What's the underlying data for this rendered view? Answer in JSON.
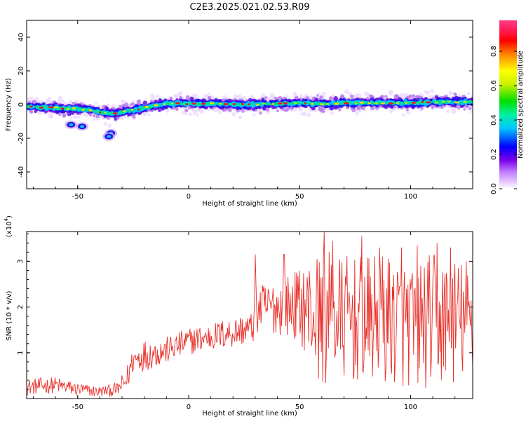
{
  "title": "C2E3.2025.021.02.53.R09",
  "chart_data": [
    {
      "type": "heatmap",
      "xlabel": "Height of straight line (km)",
      "ylabel": "Frequency (Hz)",
      "xlim": [
        -73,
        128
      ],
      "ylim": [
        -50,
        50
      ],
      "xticks": [
        -50,
        0,
        50,
        100
      ],
      "yticks": [
        -40,
        -20,
        0,
        20,
        40
      ],
      "colorbar": {
        "label": "Normalized spectral amplitude",
        "range": [
          0.0,
          0.98
        ],
        "ticks": [
          0.0,
          0.2,
          0.4,
          0.6,
          0.8
        ],
        "colormap": [
          "#ffffff",
          "#e6c8ff",
          "#c07cff",
          "#7a00e6",
          "#0000ff",
          "#00c8ff",
          "#00f0a0",
          "#00e000",
          "#c8f000",
          "#ffff00",
          "#ff8000",
          "#ff0000",
          "#ff2060",
          "#ff3c82"
        ]
      },
      "ridge": {
        "x": [
          -73,
          -60,
          -45,
          -38,
          -33,
          -28,
          -20,
          -10,
          0,
          10,
          20,
          30,
          40,
          50,
          60,
          70,
          80,
          90,
          100,
          110,
          120,
          128
        ],
        "frequency": [
          -1,
          -2,
          -3,
          -5,
          -5.5,
          -4,
          -2,
          0.5,
          0.5,
          0.5,
          0,
          0,
          0.5,
          1,
          0.5,
          1,
          1,
          1,
          1,
          1.5,
          1.5,
          1.5
        ]
      },
      "blobs": [
        {
          "x": -53,
          "frequency": -12
        },
        {
          "x": -48,
          "frequency": -13
        },
        {
          "x": -35,
          "frequency": -17
        },
        {
          "x": -36,
          "frequency": -19
        }
      ]
    },
    {
      "type": "line",
      "xlabel": "Height of straight line (km)",
      "ylabel": "SNR (10 * v/v)",
      "y_multiplier": "(x10",
      "y_multiplier_exp": "4",
      "y_multiplier_close": ")",
      "xlim": [
        -73,
        128
      ],
      "ylim": [
        0,
        3.65
      ],
      "xticks": [
        -50,
        0,
        50,
        100
      ],
      "yticks": [
        1,
        2,
        3
      ],
      "series": [
        {
          "color": "#e8312b",
          "envelope_x": [
            -73,
            -60,
            -50,
            -40,
            -32,
            -28,
            -25,
            -20,
            -10,
            0,
            10,
            20,
            29,
            30,
            40,
            50,
            55,
            60,
            70,
            80,
            90,
            100,
            110,
            120,
            128
          ],
          "envelope_mean": [
            0.25,
            0.3,
            0.2,
            0.15,
            0.2,
            0.4,
            0.85,
            0.95,
            1.05,
            1.25,
            1.35,
            1.45,
            1.55,
            1.95,
            2.0,
            2.05,
            1.9,
            1.75,
            1.75,
            1.7,
            1.75,
            1.6,
            1.7,
            1.7,
            1.7
          ],
          "envelope_amp": [
            0.18,
            0.18,
            0.15,
            0.12,
            0.15,
            0.3,
            0.3,
            0.35,
            0.3,
            0.3,
            0.3,
            0.35,
            0.35,
            0.55,
            0.6,
            0.8,
            1.2,
            1.5,
            1.4,
            1.4,
            1.45,
            1.4,
            1.5,
            1.4,
            1.3
          ],
          "peaks": [
            {
              "x": 30,
              "y": 3.15
            },
            {
              "x": 43,
              "y": 3.15
            },
            {
              "x": 61,
              "y": 3.65
            },
            {
              "x": 65,
              "y": 3.45
            },
            {
              "x": 78,
              "y": 3.55
            },
            {
              "x": 86,
              "y": 3.3
            },
            {
              "x": 96,
              "y": 3.3
            },
            {
              "x": 103,
              "y": 3.35
            },
            {
              "x": 112,
              "y": 3.4
            },
            {
              "x": 118,
              "y": 3.3
            },
            {
              "x": 125,
              "y": 3.0
            }
          ]
        }
      ]
    }
  ]
}
